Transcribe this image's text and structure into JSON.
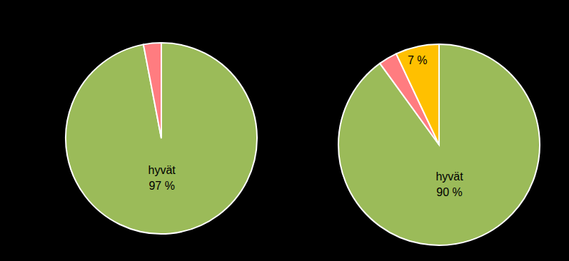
{
  "chart_data": [
    {
      "type": "pie",
      "categories": [
        "hyvät",
        null
      ],
      "values": [
        97,
        3
      ],
      "value_labels": [
        "97 %",
        null
      ],
      "colors": [
        "#9bbb59",
        "#ff7c80"
      ],
      "data_labels": true
    },
    {
      "type": "pie",
      "categories": [
        "hyvät",
        null,
        null
      ],
      "values": [
        90,
        3,
        7
      ],
      "value_labels": [
        "90 %",
        null,
        "7 %"
      ],
      "colors": [
        "#9bbb59",
        "#ff7c80",
        "#ffc000"
      ],
      "data_labels": true
    }
  ]
}
